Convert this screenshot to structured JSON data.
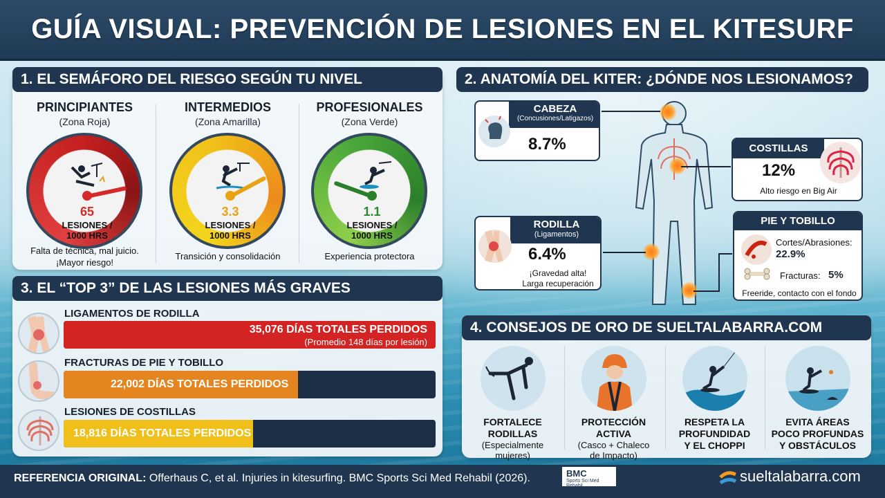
{
  "title": "GUÍA VISUAL: PREVENCIÓN DE LESIONES EN EL KITESURF",
  "section1": {
    "title": "1. EL SEMÁFORO DEL RIESGO SEGÚN TU NIVEL",
    "levels": [
      {
        "name": "PRINCIPIANTES",
        "zone": "(Zona Roja)",
        "value": "65",
        "unit_line1": "LESIONES /",
        "unit_line2": "1000 HRS",
        "desc_line1": "Falta de técnica, mal juicio.",
        "desc_line2": "¡Mayor riesgo!",
        "color": "#d42a2a"
      },
      {
        "name": "INTERMEDIOS",
        "zone": "(Zona Amarilla)",
        "value": "3.3",
        "unit_line1": "LESIONES /",
        "unit_line2": "1000 HRS",
        "desc_line1": "Transición y consolidación",
        "desc_line2": "",
        "color": "#e8a315"
      },
      {
        "name": "PROFESIONALES",
        "zone": "(Zona Verde)",
        "value": "1.1",
        "unit_line1": "LESIONES /",
        "unit_line2": "1000 HRS",
        "desc_line1": "Experiencia protectora",
        "desc_line2": "",
        "color": "#3d9a3a"
      }
    ]
  },
  "section2": {
    "title": "2. ANATOMÍA DEL KITER: ¿DÓNDE NOS LESIONAMOS?",
    "head": {
      "label": "CABEZA",
      "sub": "(Concusiones/Latigazos)",
      "value": "8.7%"
    },
    "ribs": {
      "label": "COSTILLAS",
      "value": "12%",
      "note": "Alto riesgo en Big Air"
    },
    "knee": {
      "label": "RODILLA",
      "sub": "(Ligamentos)",
      "value": "6.4%",
      "note1": "¡Gravedad alta!",
      "note2": "Larga recuperación"
    },
    "foot": {
      "label": "PIE Y TOBILLO",
      "cuts_label": "Cortes/Abrasiones:",
      "cuts_value": "22.9%",
      "fract_label": "Fracturas:",
      "fract_value": "5%",
      "note": "Freeride, contacto con el fondo"
    }
  },
  "section3": {
    "title": "3. EL “TOP 3” DE LAS LESIONES MÁS GRAVES",
    "items": [
      {
        "name": "LIGAMENTOS DE RODILLA",
        "text": "35,076 DÍAS TOTALES PERDIDOS",
        "sub": "(Promedio 148 días por lesión)",
        "days": 35076,
        "color": "#d42323"
      },
      {
        "name": "FRACTURAS DE PIE Y TOBILLO",
        "text": "22,002 DÍAS TOTALES PERDIDOS",
        "sub": "",
        "days": 22002,
        "color": "#e5851f"
      },
      {
        "name": "LESIONES DE COSTILLAS",
        "text": "18,816 DÍAS TOTALES PERDIDOS",
        "sub": "",
        "days": 18816,
        "color": "#f1bf1a"
      }
    ]
  },
  "section4": {
    "title": "4. CONSEJOS DE ORO DE SUELTALABARRA.COM",
    "tips": [
      {
        "l1": "FORTALECE",
        "l2": "RODILLAS",
        "s1": "(Especialmente",
        "s2": "mujeres)"
      },
      {
        "l1": "PROTECCIÓN",
        "l2": "ACTIVA",
        "s1": "(Casco + Chaleco",
        "s2": "de Impacto)"
      },
      {
        "l1": "RESPETA LA",
        "l2": "PROFUNDIDAD",
        "l3": "Y EL CHOPPI"
      },
      {
        "l1": "EVITA ÁREAS",
        "l2": "POCO PROFUNDAS",
        "l3": "Y OBSTÁCULOS"
      }
    ]
  },
  "footer": {
    "ref_label": "REFERENCIA ORIGINAL:",
    "ref_text": "Offerhaus C, et al. Injuries in kitesurfing. BMC Sports Sci Med Rehabil (2026).",
    "bmc_logo": "BMC",
    "bmc_sub": "Sports Sci Med Rehabil",
    "brand": "sueltalabarra.com"
  }
}
